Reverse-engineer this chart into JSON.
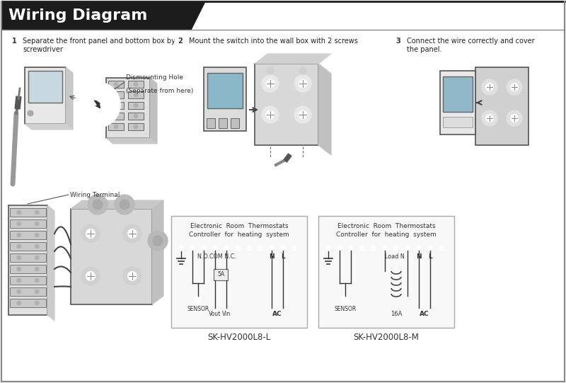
{
  "title": "Wiring Diagram",
  "title_bg": "#1c1c1c",
  "title_color": "#ffffff",
  "bg_color": "#ffffff",
  "step1_text_a": "Separate the front panel and bottom box by",
  "step1_text_b": "screwdriver",
  "step2_text": "Mount the switch into the wall box with 2 screws",
  "step3_text_a": "Connect the wire correctly and cover",
  "step3_text_b": "the panel.",
  "dismount_label_a": "Dismounting Hole",
  "dismount_label_b": "(Separate from here)",
  "wiring_terminal_label": "Wiring Terminal",
  "diagram1_title1": "Electronic  Room  Thermostats",
  "diagram1_title2": "Controller  for  heating  system",
  "diagram1_model": "SK-HV2000L8-L",
  "diagram2_title1": "Electronic  Room  Thermostats",
  "diagram2_title2": "Controller  for  heating  system",
  "diagram2_model": "SK-HV2000L8-M",
  "outer_border": "#555555",
  "line_color": "#444444",
  "gray_light": "#e0e0e0",
  "gray_mid": "#cccccc",
  "gray_dark": "#aaaaaa"
}
